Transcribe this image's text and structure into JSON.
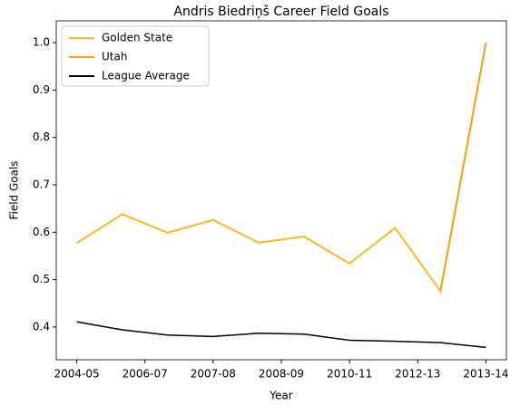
{
  "chart_data": {
    "type": "line",
    "title": "Andris Biedriņš Career Field Goals",
    "xlabel": "Year",
    "ylabel": "Field Goals",
    "x": [
      0,
      1,
      2,
      3,
      4,
      5,
      6,
      7,
      8,
      9
    ],
    "xlim": [
      -0.45,
      9.45
    ],
    "xticks": [
      {
        "value": 0,
        "label": "2004-05"
      },
      {
        "value": 1.5,
        "label": "2006-07"
      },
      {
        "value": 3,
        "label": "2007-08"
      },
      {
        "value": 4.5,
        "label": "2008-09"
      },
      {
        "value": 6,
        "label": "2010-11"
      },
      {
        "value": 7.5,
        "label": "2012-13"
      },
      {
        "value": 9,
        "label": "2013-14"
      }
    ],
    "ylim": [
      0.331,
      1.046
    ],
    "yticks": [
      0.4,
      0.5,
      0.6,
      0.7,
      0.8,
      0.9,
      {
        "value": 1,
        "label": "1.0"
      }
    ],
    "legend": "upper left",
    "series": [
      {
        "name": "Golden State",
        "color": "#fdb927",
        "width": 2,
        "values": [
          0.577,
          0.638,
          0.599,
          0.626,
          0.578,
          0.591,
          0.534,
          0.609,
          0.476,
          1.0
        ]
      },
      {
        "name": "Utah",
        "color": "#f9a01b",
        "width": 2,
        "values": [
          null,
          null,
          null,
          null,
          null,
          null,
          null,
          null,
          0.476,
          1.0
        ]
      },
      {
        "name": "League Average",
        "color": "#000000",
        "width": 1.5,
        "values": [
          0.411,
          0.394,
          0.383,
          0.38,
          0.387,
          0.385,
          0.372,
          0.37,
          0.367,
          0.357
        ]
      }
    ]
  }
}
